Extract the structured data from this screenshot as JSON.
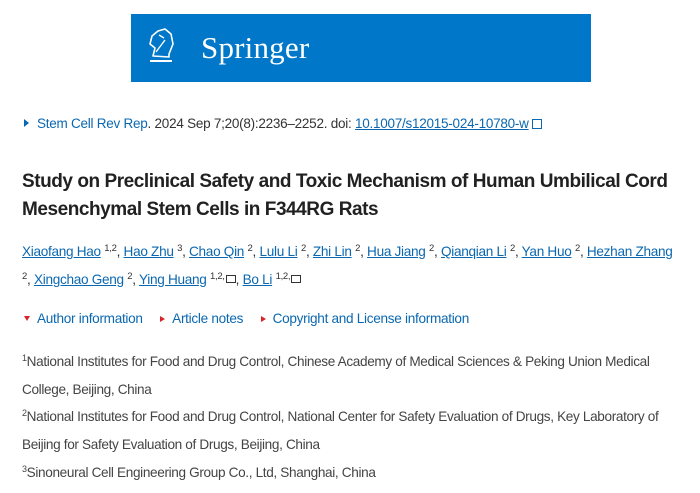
{
  "banner": {
    "brand": "Springer",
    "logo_icon": "springer-chess-knight-icon",
    "color": "#0077c8"
  },
  "citation": {
    "journal": "Stem Cell Rev Rep",
    "details": ". 2024 Sep 7;20(8):2236–2252. doi: ",
    "doi": "10.1007/s12015-024-10780-w",
    "external_icon": "external-link-icon"
  },
  "title": "Study on Preclinical Safety and Toxic Mechanism of Human Umbilical Cord Mesenchymal Stem Cells in F344RG Rats",
  "authors": [
    {
      "name": "Xiaofang Hao",
      "aff": "1,2"
    },
    {
      "name": "Hao Zhu",
      "aff": "3"
    },
    {
      "name": "Chao Qin",
      "aff": "2"
    },
    {
      "name": "Lulu Li",
      "aff": "2"
    },
    {
      "name": "Zhi Lin",
      "aff": "2"
    },
    {
      "name": "Hua Jiang",
      "aff": "2"
    },
    {
      "name": "Qianqian Li",
      "aff": "2"
    },
    {
      "name": "Yan Huo",
      "aff": "2"
    },
    {
      "name": "Hezhan Zhang",
      "aff": "2"
    },
    {
      "name": "Xingchao Geng",
      "aff": "2"
    },
    {
      "name": "Ying Huang",
      "aff": "1,2,",
      "mail": true
    },
    {
      "name": "Bo Li",
      "aff": "1,2,",
      "mail": true
    }
  ],
  "notes": {
    "author_information": "Author information",
    "article_notes": "Article notes",
    "copyright": "Copyright and License information"
  },
  "affiliations": [
    {
      "num": "1",
      "text": "National Institutes for Food and Drug Control, Chinese Academy of Medical Sciences & Peking Union Medical College, Beijing, China"
    },
    {
      "num": "2",
      "text": "National Institutes for Food and Drug Control, National Center for Safety Evaluation of Drugs, Key Laboratory of Beijing for Safety Evaluation of Drugs, Beijing, China"
    },
    {
      "num": "3",
      "text": "Sinoneural Cell Engineering Group Co., Ltd, Shanghai, China"
    }
  ]
}
